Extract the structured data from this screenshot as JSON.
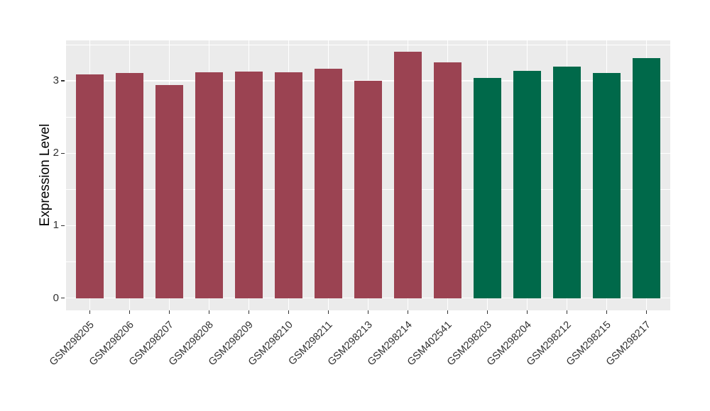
{
  "chart_data": {
    "type": "bar",
    "title": "",
    "xlabel": "",
    "ylabel": "Expression Level",
    "categories": [
      "GSM298205",
      "GSM298206",
      "GSM298207",
      "GSM298208",
      "GSM298209",
      "GSM298210",
      "GSM298211",
      "GSM298213",
      "GSM298214",
      "GSM402541",
      "GSM298203",
      "GSM298204",
      "GSM298212",
      "GSM298215",
      "GSM298217"
    ],
    "values": [
      3.09,
      3.11,
      2.94,
      3.12,
      3.13,
      3.12,
      3.17,
      3.0,
      3.4,
      3.26,
      3.04,
      3.14,
      3.2,
      3.11,
      3.32
    ],
    "bar_colors": [
      "#9B4352",
      "#9B4352",
      "#9B4352",
      "#9B4352",
      "#9B4352",
      "#9B4352",
      "#9B4352",
      "#9B4352",
      "#9B4352",
      "#9B4352",
      "#00694A",
      "#00694A",
      "#00694A",
      "#00694A",
      "#00694A"
    ],
    "groups": [
      {
        "color": "#9B4352",
        "samples": [
          "GSM298205",
          "GSM298206",
          "GSM298207",
          "GSM298208",
          "GSM298209",
          "GSM298210",
          "GSM298211",
          "GSM298213",
          "GSM298214",
          "GSM402541"
        ]
      },
      {
        "color": "#00694A",
        "samples": [
          "GSM298203",
          "GSM298204",
          "GSM298212",
          "GSM298215",
          "GSM298217"
        ]
      }
    ],
    "yticks": [
      "0",
      "1",
      "2",
      "3"
    ],
    "ytick_values": [
      0,
      1,
      2,
      3
    ],
    "minor_ytick_values": [
      0.5,
      1.5,
      2.5,
      3.5
    ],
    "ylim": [
      -0.17,
      3.56
    ],
    "x_label_rotation_deg": 45,
    "legend": "none",
    "grid": "on",
    "panel_background": "#EBEBEB",
    "grid_color": "#FFFFFF",
    "axis_text_color": "#303030",
    "tick_mark_color": "#333333"
  }
}
